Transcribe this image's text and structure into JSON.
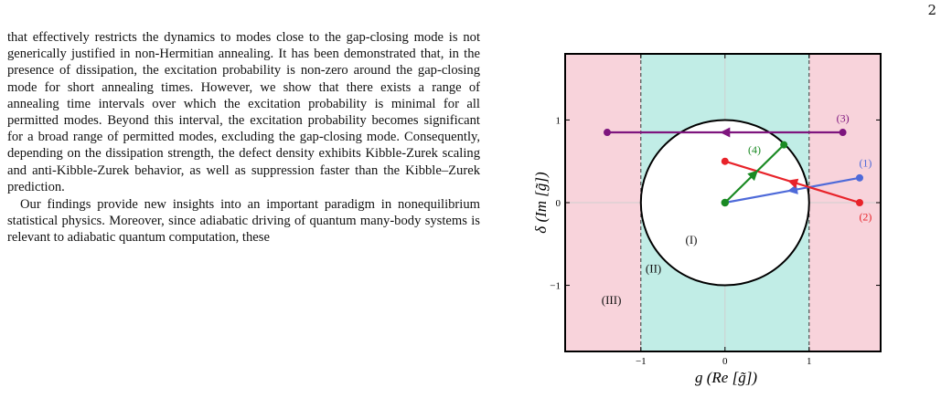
{
  "page": {
    "number": "2"
  },
  "body": {
    "paragraphs": [
      "that effectively restricts the dynamics to modes close to the gap-closing mode is not generically justified in non-Hermitian annealing. It has been demonstrated that, in the presence of dissipation, the excitation probability is non-zero around the gap-closing mode for short annealing times. However, we show that there exists a range of annealing time intervals over which the excitation probability is minimal for all permitted modes. Beyond this interval, the excitation probability becomes significant for a broad range of permitted modes, excluding the gap-closing mode. Consequently, depending on the dissipation strength, the defect density exhibits Kibble-Zurek scaling and anti-Kibble-Zurek behavior, as well as suppression faster than the Kibble–Zurek prediction.",
      "Our findings provide new insights into an important paradigm in nonequilibrium statistical physics. Moreover, since adiabatic driving of quantum many-body systems is relevant to adiabatic quantum computation, these"
    ]
  },
  "figure": {
    "xlabel": "g  (Re [g̃])",
    "ylabel": "δ  (Im [g̃])",
    "colors": {
      "outer": "#f8d3db",
      "inner": "#c1ede6",
      "path1": "#4e6ad9",
      "path2": "#e8232a",
      "path3": "#7e157e",
      "path4": "#1a8a23",
      "point": "#1a8a23"
    }
  },
  "chart_data": {
    "type": "scatter",
    "xlim": [
      -1.9,
      1.85
    ],
    "ylim": [
      -1.8,
      1.8
    ],
    "x_ticks": [
      {
        "value": -1,
        "label": "−1"
      },
      {
        "value": 0,
        "label": "0"
      },
      {
        "value": 1,
        "label": "1"
      }
    ],
    "y_ticks": [
      {
        "value": -1,
        "label": "−1"
      },
      {
        "value": 0,
        "label": "0"
      },
      {
        "value": 1,
        "label": "1"
      }
    ],
    "grid": false,
    "regions": [
      {
        "label": "(I)",
        "shape": "unit circle",
        "label_pos": [
          -0.4,
          -0.45
        ]
      },
      {
        "label": "(II)",
        "shape": "strip -1 < g < 1 outside circle",
        "label_pos": [
          -0.85,
          -0.8
        ]
      },
      {
        "label": "(III)",
        "shape": "|g| > 1",
        "label_pos": [
          -1.35,
          -1.18
        ]
      }
    ],
    "boundaries": {
      "dashed_x": [
        -1,
        1
      ],
      "circle_radius": 1
    },
    "paths": [
      {
        "label": "(1)",
        "color_key": "path1",
        "from": [
          1.6,
          0.3
        ],
        "to": [
          0,
          0
        ],
        "label_pos": [
          1.67,
          0.48
        ]
      },
      {
        "label": "(2)",
        "color_key": "path2",
        "from": [
          1.6,
          0
        ],
        "to": [
          0,
          0.5
        ],
        "label_pos": [
          1.67,
          -0.17
        ]
      },
      {
        "label": "(3)",
        "color_key": "path3",
        "from": [
          1.4,
          0.85
        ],
        "to": [
          -1.4,
          0.85
        ],
        "label_pos": [
          1.4,
          1.02
        ]
      },
      {
        "label": "(4)",
        "color_key": "path4",
        "from": [
          0,
          0
        ],
        "to": [
          0.7,
          0.7
        ],
        "label_pos": [
          0.35,
          0.64
        ]
      }
    ]
  }
}
